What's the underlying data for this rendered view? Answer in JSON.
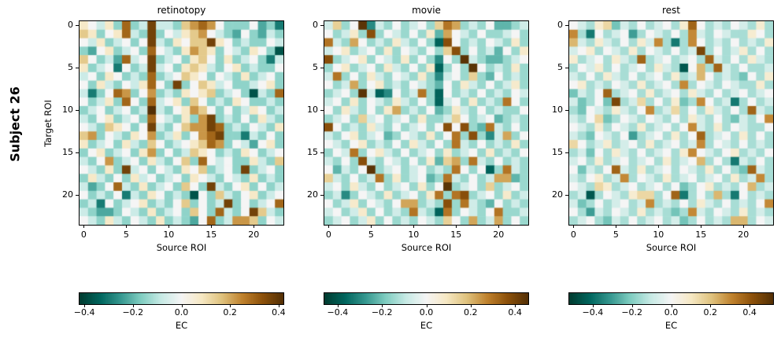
{
  "figure": {
    "subject_label": "Subject 26",
    "xlabel": "Source ROI",
    "ylabel": "Target ROI",
    "background": "#ffffff",
    "colormap": {
      "name": "BrBG_r",
      "anchors": [
        "#003c30",
        "#01665e",
        "#35978f",
        "#80cdc1",
        "#c7eae5",
        "#f5f5f5",
        "#f6e8c3",
        "#dfc27d",
        "#bf812d",
        "#8c510a",
        "#543005"
      ]
    },
    "value_encoding": {
      "chars": "abcdefghijklm",
      "min": -0.45,
      "step": 0.075
    }
  },
  "chart_data": [
    {
      "type": "heatmap",
      "title": "retinotopy",
      "xlabel": "Source ROI",
      "ylabel": "Target ROI",
      "n_rows": 24,
      "n_cols": 24,
      "x_ticks": [
        0,
        5,
        10,
        15,
        20
      ],
      "y_ticks": [
        0,
        5,
        10,
        15,
        20
      ],
      "colorbar": {
        "label": "EC",
        "vmin": -0.42,
        "vmax": 0.42,
        "ticks": [
          -0.4,
          -0.2,
          0.0,
          0.2,
          0.4
        ],
        "tick_labels": [
          "−0.4",
          "−0.2",
          "0.0",
          "0.2",
          "0.4"
        ]
      },
      "rows": [
        "hgfheke flffeijkjgeeegdec",
        "iheghkfelegfhijgfedgedfe",
        "gfhefgeglfehgiilhgefeegf",
        "edghefgekgfehjihegfehgeb",
        "igefdkfglefgehigehefgecf",
        "hefgcgeflfgehihfeghefeeg",
        "fgehgefekefgihgegfehefge",
        "gehfegfhkgelegihfgeefghe",
        "fcegkjegjefehghiefgebfek",
        "gefhekgekfgheigefehgeefe",
        "efgefgefmfeghjigegefhgef",
        "feghefgekgfehejlefegehfe",
        "gfeihgeglfegijjlkefegfeh",
        "ijegfehgjefhegjkleecfege",
        "hefgehfeigefghikjegfdghe",
        "eghefgehjegefihgefehgefg",
        "fegjefgehfegiekgfgeehfei",
        "gfehelfgegfehgiefgelefge",
        "ehfegehfgefgehgfegfehefe",
        "fdegkfehefgeigelfeghegef",
        "gefegcfehgefebgeifeghefg",
        "efcgefghefegiegeflegefgk",
        "feddegfehefgeigekfeglife",
        "gfehfegfehefedgkefjjiegf"
      ]
    },
    {
      "type": "heatmap",
      "title": "movie",
      "xlabel": "Source ROI",
      "ylabel": "Target ROI",
      "n_rows": 24,
      "n_cols": 24,
      "x_ticks": [
        0,
        5,
        10,
        15,
        20
      ],
      "y_ticks": [
        0,
        5,
        10,
        15,
        20
      ],
      "colorbar": {
        "label": "EC",
        "vmin": -0.46,
        "vmax": 0.46,
        "ticks": [
          -0.4,
          -0.2,
          0.0,
          0.2,
          0.4
        ],
        "tick_labels": [
          "−0.4",
          "−0.2",
          "0.0",
          "0.2",
          "0.4"
        ]
      },
      "rows": [
        "fiegmcfegefgeikjefegddef",
        "gefhelegfegehdjgfegeefge",
        "kfejgefehfegeblgefegfehe",
        "fghefgehegfegeilegefdgeh",
        "lefghegfehegecgemfeddefg",
        "eghefgehfegehbegemgefehe",
        "fkegehfegfehecfgeiedgefe",
        "gefjeghefegfedgehfegefhe",
        "efgemfbcgefkebgefegefegf",
        "fgehegfehfegebfgehefekge",
        "gehfegehjefegdehfegefeeg",
        "efgeifgefgeheefigefgdefe",
        "lgefehfegefgeglgledkfege",
        "feghefgdegfehegkelecfjeg",
        "gfeghefegehfegekfegefehe",
        "egfkeghfegefgehefgehefeg",
        "fegelfegfegehdijekfegefe",
        "gdfegmefgefgefekgegbekfe",
        "ifegefkehefgdekfegefjjde",
        "fgehfegefgehegmefgeiefge",
        "efcegfehefgehkeklefgehef",
        "gefhegfegjjefelekfedgefe",
        "fgefhegefekfebkegfegkeef",
        "efgefhegefegfeigejefjege"
      ]
    },
    {
      "type": "heatmap",
      "title": "rest",
      "xlabel": "Source ROI",
      "ylabel": "Target ROI",
      "n_rows": 24,
      "n_cols": 24,
      "x_ticks": [
        0,
        5,
        10,
        15,
        20
      ],
      "y_ticks": [
        0,
        5,
        10,
        15,
        20
      ],
      "colorbar": {
        "label": "EC",
        "vmin": -0.52,
        "vmax": 0.52,
        "ticks": [
          -0.4,
          -0.2,
          0.0,
          0.2,
          0.4
        ],
        "tick_labels": [
          "−0.4",
          "−0.2",
          "0.0",
          "0.2",
          "0.4"
        ]
      },
      "rows": [
        "gfehidfegefgehlgefegfehe",
        "kebgefgcegfegekfegfeehge",
        "jfehfegehfkebekgefegefeh",
        "fghegfehegfegefmegefhege",
        "hefgehfelefgefgelfegehfe",
        "egfhegefgehfeagjelfegeef",
        "fegehfegefgehefjgefedgeh",
        "ghefegfehefgekegfegfeehe",
        "dfeglefgehefgehfegefgefg",
        "fdegdmefiegehdekgefbegef",
        "edgfehfegkefiegehfegelfe",
        "fegidegfegfegehfegedfegk",
        "gfehegfehefgegkfehegfeeg",
        "fedgfegcefgeheglefgehege",
        "igefhefgehefgefkegfegefe",
        "efdgehfegefgehkgfeghefeg",
        "fgehefgefgehefgjegebfege",
        "gdfeglfehefgegfehegedlfe",
        "feghefkegfehefgefgehefke",
        "gfeihefgefgegdeghefegjef",
        "efaegfehiieglbegejebgefe",
        "fdegefgefkefegehfegefegk",
        "gecfegfehefedekfegfehefe",
        "efgedfegefgefdegefejjegf"
      ]
    }
  ]
}
